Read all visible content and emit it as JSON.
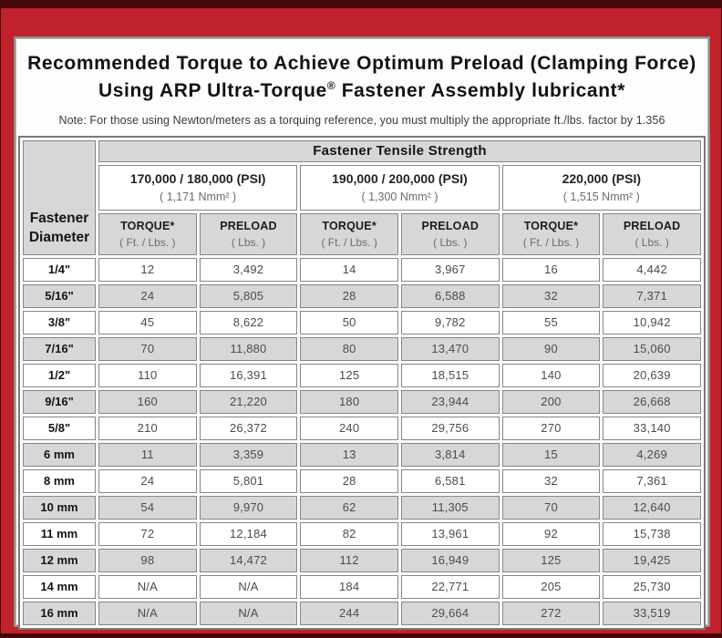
{
  "title": {
    "line1": "Recommended Torque to Achieve Optimum Preload (Clamping Force)",
    "line2_pre": "Using ARP Ultra-Torque",
    "line2_reg": "®",
    "line2_post": " Fastener Assembly lubricant*"
  },
  "note": "Note: For those using Newton/meters as a torquing reference, you must multiply the appropriate ft./lbs. factor by 1.356",
  "colors": {
    "frame_red": "#c1212b",
    "frame_dark": "#45080b",
    "cell_shade": "#d7d7d7",
    "cell_white": "#ffffff",
    "cell_border": "#868686"
  },
  "table": {
    "tensile_header": "Fastener Tensile Strength",
    "diameter_header_line1": "Fastener",
    "diameter_header_line2": "Diameter",
    "groups": [
      {
        "psi": "170,000 / 180,000 (PSI)",
        "nmm": "( 1,171 Nmm² )",
        "torque_label": "TORQUE*",
        "torque_unit": "( Ft. / Lbs. )",
        "preload_label": "PRELOAD",
        "preload_unit": "( Lbs. )"
      },
      {
        "psi": "190,000 / 200,000 (PSI)",
        "nmm": "( 1,300 Nmm² )",
        "torque_label": "TORQUE*",
        "torque_unit": "( Ft. / Lbs. )",
        "preload_label": "PRELOAD",
        "preload_unit": "( Lbs. )"
      },
      {
        "psi": "220,000 (PSI)",
        "nmm": "( 1,515 Nmm² )",
        "torque_label": "TORQUE*",
        "torque_unit": "( Ft. / Lbs. )",
        "preload_label": "PRELOAD",
        "preload_unit": "( Lbs. )"
      }
    ],
    "rows": [
      {
        "diameter": "1/4\"",
        "values": [
          "12",
          "3,492",
          "14",
          "3,967",
          "16",
          "4,442"
        ]
      },
      {
        "diameter": "5/16\"",
        "values": [
          "24",
          "5,805",
          "28",
          "6,588",
          "32",
          "7,371"
        ]
      },
      {
        "diameter": "3/8\"",
        "values": [
          "45",
          "8,622",
          "50",
          "9,782",
          "55",
          "10,942"
        ]
      },
      {
        "diameter": "7/16\"",
        "values": [
          "70",
          "11,880",
          "80",
          "13,470",
          "90",
          "15,060"
        ]
      },
      {
        "diameter": "1/2\"",
        "values": [
          "110",
          "16,391",
          "125",
          "18,515",
          "140",
          "20,639"
        ]
      },
      {
        "diameter": "9/16\"",
        "values": [
          "160",
          "21,220",
          "180",
          "23,944",
          "200",
          "26,668"
        ]
      },
      {
        "diameter": "5/8\"",
        "values": [
          "210",
          "26,372",
          "240",
          "29,756",
          "270",
          "33,140"
        ]
      },
      {
        "diameter": "6 mm",
        "values": [
          "11",
          "3,359",
          "13",
          "3,814",
          "15",
          "4,269"
        ]
      },
      {
        "diameter": "8 mm",
        "values": [
          "24",
          "5,801",
          "28",
          "6,581",
          "32",
          "7,361"
        ]
      },
      {
        "diameter": "10 mm",
        "values": [
          "54",
          "9,970",
          "62",
          "11,305",
          "70",
          "12,640"
        ]
      },
      {
        "diameter": "11 mm",
        "values": [
          "72",
          "12,184",
          "82",
          "13,961",
          "92",
          "15,738"
        ]
      },
      {
        "diameter": "12 mm",
        "values": [
          "98",
          "14,472",
          "112",
          "16,949",
          "125",
          "19,425"
        ]
      },
      {
        "diameter": "14 mm",
        "values": [
          "N/A",
          "N/A",
          "184",
          "22,771",
          "205",
          "25,730"
        ]
      },
      {
        "diameter": "16 mm",
        "values": [
          "N/A",
          "N/A",
          "244",
          "29,664",
          "272",
          "33,519"
        ]
      }
    ]
  }
}
